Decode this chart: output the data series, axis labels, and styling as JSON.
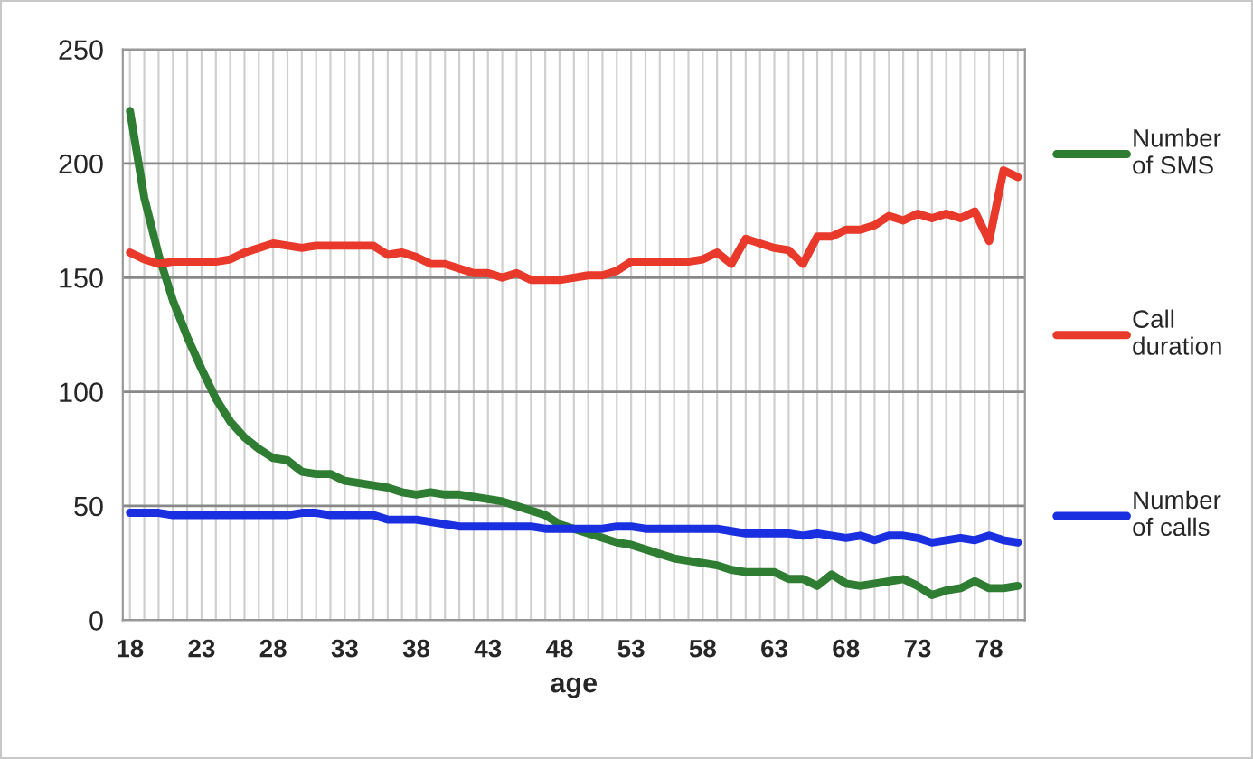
{
  "chart_data": {
    "type": "line",
    "xlabel": "age",
    "categories": [
      "18",
      null,
      null,
      null,
      null,
      "23",
      null,
      null,
      null,
      null,
      "28",
      null,
      null,
      null,
      null,
      "33",
      null,
      null,
      null,
      null,
      "38",
      null,
      null,
      null,
      null,
      "43",
      null,
      null,
      null,
      null,
      "48",
      null,
      null,
      null,
      null,
      "53",
      null,
      null,
      null,
      null,
      "58",
      null,
      null,
      null,
      null,
      "63",
      null,
      null,
      null,
      null,
      "68",
      null,
      null,
      null,
      null,
      "73",
      null,
      null,
      null,
      null,
      "78",
      null,
      null
    ],
    "series": [
      {
        "name": "Number of SMS",
        "color": "#2e7d32",
        "values": [
          223,
          185,
          160,
          140,
          124,
          110,
          97,
          87,
          80,
          75,
          71,
          70,
          65,
          64,
          64,
          61,
          60,
          59,
          58,
          56,
          55,
          56,
          55,
          55,
          54,
          53,
          52,
          50,
          48,
          46,
          42,
          40,
          38,
          36,
          34,
          33,
          31,
          29,
          27,
          26,
          25,
          24,
          22,
          21,
          21,
          21,
          18,
          18,
          15,
          20,
          16,
          15,
          16,
          17,
          18,
          15,
          11,
          13,
          14,
          17,
          14,
          14,
          15
        ]
      },
      {
        "name": "Call duration",
        "color": "#e8392b",
        "values": [
          161,
          158,
          156,
          157,
          157,
          157,
          157,
          158,
          161,
          163,
          165,
          164,
          163,
          164,
          164,
          164,
          164,
          164,
          160,
          161,
          159,
          156,
          156,
          154,
          152,
          152,
          150,
          152,
          149,
          149,
          149,
          150,
          151,
          151,
          153,
          157,
          157,
          157,
          157,
          157,
          158,
          161,
          156,
          167,
          165,
          163,
          162,
          156,
          168,
          168,
          171,
          171,
          173,
          177,
          175,
          178,
          176,
          178,
          176,
          179,
          166,
          197,
          194
        ]
      },
      {
        "name": "Number of calls",
        "color": "#1a2fe0",
        "values": [
          47,
          47,
          47,
          46,
          46,
          46,
          46,
          46,
          46,
          46,
          46,
          46,
          47,
          47,
          46,
          46,
          46,
          46,
          44,
          44,
          44,
          43,
          42,
          41,
          41,
          41,
          41,
          41,
          41,
          40,
          40,
          40,
          40,
          40,
          41,
          41,
          40,
          40,
          40,
          40,
          40,
          40,
          39,
          38,
          38,
          38,
          38,
          37,
          38,
          37,
          36,
          37,
          35,
          37,
          37,
          36,
          34,
          35,
          36,
          35,
          37,
          35,
          34
        ]
      }
    ],
    "ylim": [
      0,
      250
    ],
    "yticks": [
      0,
      50,
      100,
      150,
      200,
      250
    ],
    "grid": true,
    "legend": "right",
    "marker": "none",
    "line_style": "solid"
  }
}
